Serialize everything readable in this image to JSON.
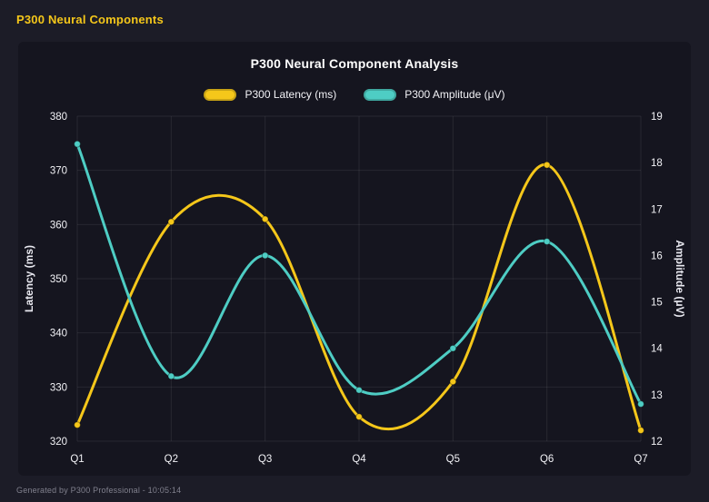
{
  "app": {
    "title": "P300 Neural Components"
  },
  "footer": {
    "text": "Generated by P300 Professional - 10:05:14"
  },
  "colors": {
    "background": "#1c1c27",
    "panel": "#15151f",
    "grid": "rgba(255,255,255,0.08)",
    "tick_text": "#f2f2f6",
    "latency_yellow": "#f5c71a",
    "amplitude_teal": "#4ecdc4"
  },
  "chart_data": {
    "type": "line",
    "title": "P300 Neural Component Analysis",
    "categories": [
      "Q1",
      "Q2",
      "Q3",
      "Q4",
      "Q5",
      "Q6",
      "Q7"
    ],
    "series": [
      {
        "name": "P300 Latency (ms)",
        "axis": "left",
        "color": "#f5c71a",
        "values": [
          323,
          360.5,
          361,
          324.5,
          331,
          371,
          322
        ]
      },
      {
        "name": "P300 Amplitude (μV)",
        "axis": "right",
        "color": "#4ecdc4",
        "values": [
          18.4,
          13.4,
          16.0,
          13.1,
          14.0,
          16.3,
          12.8
        ]
      }
    ],
    "left_axis": {
      "label": "Latency (ms)",
      "min": 320,
      "max": 380,
      "ticks": [
        320,
        330,
        340,
        350,
        360,
        370,
        380
      ]
    },
    "right_axis": {
      "label": "Amplitude (μV)",
      "min": 12,
      "max": 19,
      "ticks": [
        12,
        13,
        14,
        15,
        16,
        17,
        18,
        19
      ]
    },
    "grid": true,
    "legend_position": "top",
    "smooth": true
  }
}
